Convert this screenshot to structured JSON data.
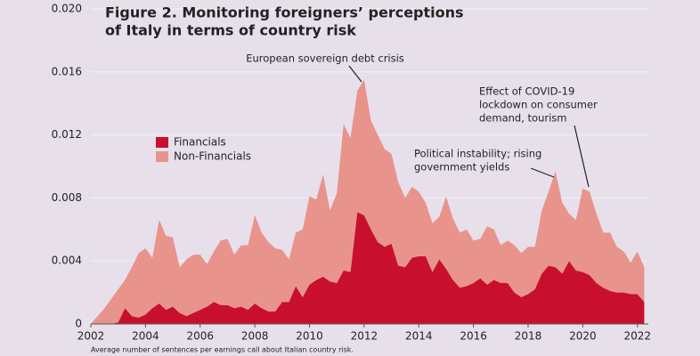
{
  "chart_data": {
    "type": "stacked_area",
    "title": [
      "Figure 2. Monitoring foreigners’ perceptions",
      "of Italy in terms of country risk"
    ],
    "footnote": "Average number of sentences per earnings call about Italian country risk.",
    "annotations": [
      {
        "lines": [
          "European sovereign debt crisis"
        ]
      },
      {
        "lines": [
          "Political instability; rising",
          "government yields"
        ]
      },
      {
        "lines": [
          "Effect of COVID-19",
          "lockdown on consumer",
          "demand, tourism"
        ]
      }
    ],
    "x": [
      2002,
      2002.25,
      2002.5,
      2002.75,
      2003,
      2003.25,
      2003.5,
      2003.75,
      2004,
      2004.25,
      2004.5,
      2004.75,
      2005,
      2005.25,
      2005.5,
      2005.75,
      2006,
      2006.25,
      2006.5,
      2006.75,
      2007,
      2007.25,
      2007.5,
      2007.75,
      2008,
      2008.25,
      2008.5,
      2008.75,
      2009,
      2009.25,
      2009.5,
      2009.75,
      2010,
      2010.25,
      2010.5,
      2010.75,
      2011,
      2011.25,
      2011.5,
      2011.75,
      2012,
      2012.25,
      2012.5,
      2012.75,
      2013,
      2013.25,
      2013.5,
      2013.75,
      2014,
      2014.25,
      2014.5,
      2014.75,
      2015,
      2015.25,
      2015.5,
      2015.75,
      2016,
      2016.25,
      2016.5,
      2016.75,
      2017,
      2017.25,
      2017.5,
      2017.75,
      2018,
      2018.25,
      2018.5,
      2018.75,
      2019,
      2019.25,
      2019.5,
      2019.75,
      2020,
      2020.25,
      2020.5,
      2020.75,
      2021,
      2021.25,
      2021.5,
      2021.75,
      2022,
      2022.25
    ],
    "series": [
      {
        "name": "Financials",
        "color": "#c8102e",
        "values": [
          0,
          0,
          0,
          0,
          0.0001,
          0.001,
          0.0005,
          0.0004,
          0.0006,
          0.001,
          0.0013,
          0.0009,
          0.0011,
          0.0007,
          0.0005,
          0.0007,
          0.0009,
          0.0011,
          0.0014,
          0.0012,
          0.0012,
          0.001,
          0.0011,
          0.0009,
          0.0013,
          0.001,
          0.0008,
          0.0008,
          0.0014,
          0.0014,
          0.0024,
          0.0017,
          0.0025,
          0.0028,
          0.003,
          0.0027,
          0.0026,
          0.0034,
          0.0033,
          0.0071,
          0.0069,
          0.006,
          0.0052,
          0.0049,
          0.0051,
          0.0037,
          0.0036,
          0.0042,
          0.0043,
          0.0043,
          0.0033,
          0.0041,
          0.0035,
          0.0028,
          0.0023,
          0.0024,
          0.0026,
          0.0029,
          0.0025,
          0.0028,
          0.0026,
          0.0026,
          0.002,
          0.0017,
          0.0019,
          0.0022,
          0.0032,
          0.0037,
          0.0036,
          0.0032,
          0.004,
          0.0034,
          0.0033,
          0.0031,
          0.0026,
          0.0023,
          0.0021,
          0.002,
          0.002,
          0.0019,
          0.0019,
          0.0014
        ]
      },
      {
        "name": "Non-Financials",
        "color": "#e8948c",
        "values": [
          0,
          0.0005,
          0.001,
          0.0016,
          0.0021,
          0.0018,
          0.0031,
          0.0041,
          0.0042,
          0.0032,
          0.0053,
          0.0047,
          0.0044,
          0.0029,
          0.0036,
          0.0037,
          0.0035,
          0.0027,
          0.0032,
          0.0041,
          0.0042,
          0.0034,
          0.0039,
          0.0041,
          0.0056,
          0.0048,
          0.0044,
          0.004,
          0.0033,
          0.0027,
          0.0034,
          0.0043,
          0.0056,
          0.0051,
          0.0065,
          0.0045,
          0.0057,
          0.0093,
          0.0085,
          0.0077,
          0.0086,
          0.0069,
          0.0068,
          0.0062,
          0.0057,
          0.0053,
          0.0044,
          0.0045,
          0.0041,
          0.0034,
          0.0031,
          0.0027,
          0.0046,
          0.0039,
          0.0035,
          0.0036,
          0.0027,
          0.0025,
          0.0037,
          0.0032,
          0.0024,
          0.0027,
          0.003,
          0.0028,
          0.003,
          0.0027,
          0.004,
          0.0047,
          0.0061,
          0.0045,
          0.003,
          0.0032,
          0.0053,
          0.0053,
          0.0044,
          0.0035,
          0.0037,
          0.0029,
          0.0026,
          0.002,
          0.0027,
          0.0022
        ]
      }
    ],
    "xlim": [
      2002,
      2022.4
    ],
    "xticks": [
      2002,
      2004,
      2006,
      2008,
      2010,
      2012,
      2014,
      2016,
      2018,
      2020,
      2022
    ],
    "ylim": [
      0,
      0.02
    ],
    "yticks": [
      0,
      0.004,
      0.008,
      0.012,
      0.016,
      {
        "value": 0.02,
        "label": "0.020"
      }
    ],
    "grid": true,
    "legend": "upper left"
  }
}
